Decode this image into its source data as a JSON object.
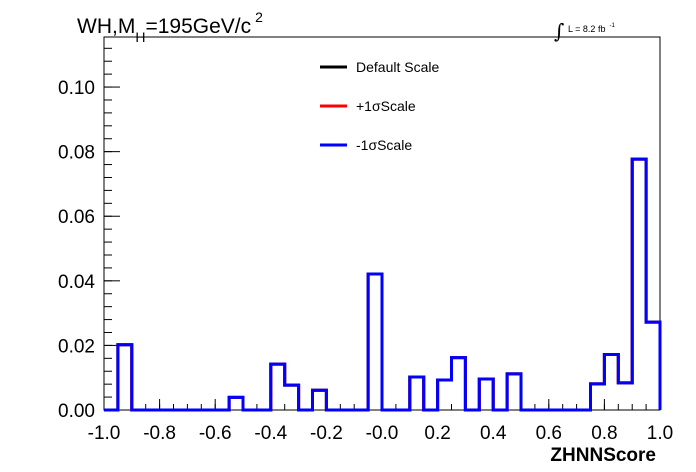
{
  "title": {
    "prefix": "WH,M",
    "subscript": "H",
    "suffix": "=195GeV/c",
    "superscript": "2"
  },
  "luminosity": {
    "integral_symbol": "∫",
    "text": "L = 8.2 fb",
    "exponent": "-1"
  },
  "chart_data": {
    "type": "histogram",
    "xlabel": "ZHNNScore",
    "ylabel": "",
    "xlim": [
      -1.0,
      1.0
    ],
    "ylim": [
      0.0,
      0.1155
    ],
    "grid": false,
    "legend_position": "top-center",
    "x_tick_labels": [
      "-1.0",
      "-0.8",
      "-0.6",
      "-0.4",
      "-0.2",
      "-0.0",
      "0.2",
      "0.4",
      "0.6",
      "0.8",
      "1.0"
    ],
    "x_tick_values": [
      -1.0,
      -0.8,
      -0.6,
      -0.4,
      -0.2,
      0.0,
      0.2,
      0.4,
      0.6,
      0.8,
      1.0
    ],
    "y_tick_labels": [
      "0.00",
      "0.02",
      "0.04",
      "0.06",
      "0.08",
      "0.10"
    ],
    "y_tick_values": [
      0.0,
      0.02,
      0.04,
      0.06,
      0.08,
      0.1
    ],
    "bin_edges": [
      -1.0,
      -0.95,
      -0.9,
      -0.85,
      -0.8,
      -0.75,
      -0.7,
      -0.65,
      -0.6,
      -0.55,
      -0.5,
      -0.45,
      -0.4,
      -0.35,
      -0.3,
      -0.25,
      -0.2,
      -0.15,
      -0.1,
      -0.05,
      0.0,
      0.05,
      0.1,
      0.15,
      0.2,
      0.25,
      0.3,
      0.35,
      0.4,
      0.45,
      0.5,
      0.55,
      0.6,
      0.65,
      0.7,
      0.75,
      0.8,
      0.85,
      0.9,
      0.95,
      1.0
    ],
    "series": [
      {
        "name": "Default Scale",
        "color": "#000000",
        "values": [
          0.0,
          0.0202,
          0.0,
          0.0,
          0.0,
          0.0,
          0.0,
          0.0,
          0.0,
          0.0039,
          0.0,
          0.0,
          0.0142,
          0.0077,
          0.0,
          0.0061,
          0.0,
          0.0,
          0.0,
          0.0421,
          0.0,
          0.0,
          0.0102,
          0.0,
          0.0093,
          0.0162,
          0.0,
          0.0096,
          0.0,
          0.0112,
          0.0,
          0.0,
          0.0,
          0.0,
          0.0,
          0.0081,
          0.0172,
          0.0084,
          0.0777,
          0.0272
        ]
      },
      {
        "name": "+1σScale",
        "color": "#ff0000",
        "values": [
          0.0,
          0.0202,
          0.0,
          0.0,
          0.0,
          0.0,
          0.0,
          0.0,
          0.0,
          0.0039,
          0.0,
          0.0,
          0.0142,
          0.0077,
          0.0,
          0.0061,
          0.0,
          0.0,
          0.0,
          0.0421,
          0.0,
          0.0,
          0.0102,
          0.0,
          0.0093,
          0.0162,
          0.0,
          0.0096,
          0.0,
          0.0112,
          0.0,
          0.0,
          0.0,
          0.0,
          0.0,
          0.0081,
          0.0172,
          0.0084,
          0.0777,
          0.0272
        ]
      },
      {
        "name": "-1σScale",
        "color": "#0000ff",
        "values": [
          0.0,
          0.0202,
          0.0,
          0.0,
          0.0,
          0.0,
          0.0,
          0.0,
          0.0,
          0.0039,
          0.0,
          0.0,
          0.0142,
          0.0077,
          0.0,
          0.0061,
          0.0,
          0.0,
          0.0,
          0.0421,
          0.0,
          0.0,
          0.0102,
          0.0,
          0.0093,
          0.0162,
          0.0,
          0.0096,
          0.0,
          0.0112,
          0.0,
          0.0,
          0.0,
          0.0,
          0.0,
          0.0081,
          0.0172,
          0.0084,
          0.0777,
          0.0272
        ]
      }
    ]
  }
}
